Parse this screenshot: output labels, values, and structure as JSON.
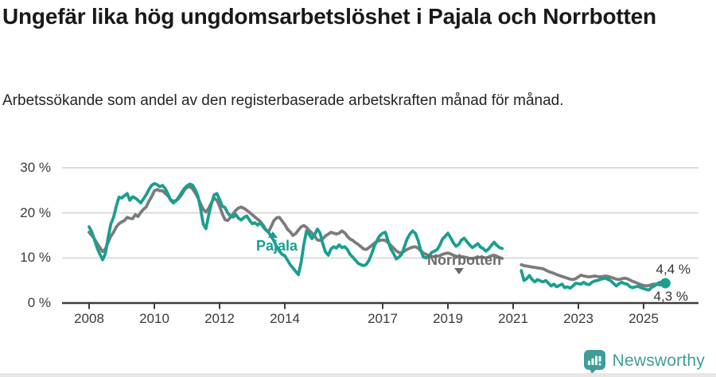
{
  "header": {
    "title": "Ungefär lika hög ungdomsarbetslöshet i Pajala och Norrbotten",
    "subtitle": "Arbetssökande som andel av den registerbaserade arbetskraften månad för månad."
  },
  "footer": {
    "brand": "Newsworthy",
    "logo_icon": "bar-chart-speech-bubble-icon"
  },
  "chart_data": {
    "type": "line",
    "x_unit": "year (monthly data)",
    "ylim": [
      0,
      32
    ],
    "grid": "horizontal",
    "yticks": [
      {
        "value": 30,
        "label": "30 %"
      },
      {
        "value": 20,
        "label": "20 %"
      },
      {
        "value": 10,
        "label": "10 %"
      },
      {
        "value": 0,
        "label": "0 %"
      }
    ],
    "xticks": [
      {
        "year": 2008,
        "label": "2008"
      },
      {
        "year": 2010,
        "label": "2010"
      },
      {
        "year": 2012,
        "label": "2012"
      },
      {
        "year": 2014,
        "label": "2014"
      },
      {
        "year": 2017,
        "label": "2017"
      },
      {
        "year": 2019,
        "label": "2019"
      },
      {
        "year": 2021,
        "label": "2021"
      },
      {
        "year": 2023,
        "label": "2023"
      },
      {
        "year": 2025,
        "label": "2025"
      }
    ],
    "colors": {
      "pajala": "#1a9e90",
      "norrbotten": "#7b7b7b",
      "gridline": "#dcdcdc",
      "axis": "#3c3c3c"
    },
    "series": [
      {
        "name": "Pajala",
        "color": "#1a9e90",
        "end_label": "4,4 %",
        "end_dot": true,
        "segments": [
          {
            "start": 2008.0,
            "step": 0.083333,
            "values": [
              16.9,
              15.8,
              14.0,
              12.2,
              10.8,
              9.6,
              11.0,
              14.5,
              17.5,
              19.0,
              21.5,
              23.5,
              23.3,
              23.8,
              24.3,
              22.8,
              23.6,
              23.3,
              22.8,
              22.2,
              23.1,
              24.0,
              25.2,
              26.1,
              26.5,
              26.3,
              25.8,
              26.1,
              25.4,
              24.2,
              22.8,
              22.2,
              22.7,
              23.5,
              24.5,
              25.4,
              26.0,
              26.4,
              26.2,
              25.2,
              23.8,
              21.0,
              17.5,
              16.5,
              19.5,
              22.0,
              24.0,
              24.3,
              23.0,
              21.5,
              21.2,
              20.0,
              19.3,
              19.1,
              19.6,
              18.8,
              18.4,
              19.0,
              19.3,
              18.4,
              17.6,
              17.8,
              17.3,
              17.8,
              16.9,
              16.2,
              15.7,
              14.8,
              13.8,
              12.5,
              11.5,
              10.8,
              10.5,
              9.5,
              8.5,
              7.8,
              7.0,
              6.3,
              9.0,
              13.0,
              16.0,
              15.2,
              14.3,
              15.2,
              16.4,
              15.5,
              13.1,
              11.3,
              10.6,
              12.0,
              12.5,
              12.2,
              12.9,
              12.3,
              12.5,
              11.9,
              10.8,
              10.2,
              9.5,
              8.8,
              8.5,
              8.3,
              8.6,
              9.5,
              11.0,
              12.7,
              14.0,
              15.0,
              15.5,
              15.7,
              13.8,
              12.0,
              11.0,
              9.8,
              10.2,
              10.8,
              12.5,
              14.2,
              15.3,
              16.0,
              15.5,
              14.0,
              11.8,
              10.2,
              10.0,
              10.3,
              11.2,
              11.5,
              11.8,
              12.8,
              14.2,
              14.8,
              15.5,
              14.5,
              13.4,
              12.6,
              13.0,
              14.0,
              14.4,
              13.6,
              12.9,
              12.3,
              12.7,
              13.2,
              12.4,
              12.1,
              11.5,
              12.0,
              12.8,
              13.5,
              12.8,
              12.3,
              12.1
            ]
          },
          {
            "start": 2021.25,
            "step": 0.083333,
            "values": [
              7.2,
              5.0,
              5.4,
              6.1,
              5.2,
              4.7,
              5.2,
              4.9,
              4.7,
              5.0,
              4.4,
              3.8,
              4.2,
              3.6,
              3.9,
              4.2,
              3.4,
              3.6,
              3.3,
              3.8,
              4.4,
              4.3,
              4.2,
              4.6,
              4.2,
              4.1,
              4.6,
              4.9,
              5.0,
              5.2,
              5.4,
              5.5,
              5.2,
              4.9,
              4.3,
              3.8,
              4.3,
              4.6,
              4.3,
              4.2,
              3.6,
              3.4,
              3.6,
              3.7,
              3.4,
              3.2,
              3.0,
              2.9,
              3.5,
              3.8,
              4.3,
              4.6,
              4.3,
              4.4
            ]
          }
        ]
      },
      {
        "name": "Norrbotten",
        "color": "#7b7b7b",
        "end_label": "4,3 %",
        "end_dot": false,
        "segments": [
          {
            "start": 2008.0,
            "step": 0.083333,
            "values": [
              15.7,
              15.0,
              14.2,
              13.2,
              12.3,
              11.4,
              12.0,
              13.5,
              14.8,
              15.7,
              16.9,
              17.6,
              18.0,
              18.3,
              19.0,
              18.8,
              18.7,
              19.6,
              19.2,
              20.1,
              20.8,
              21.3,
              22.6,
              23.6,
              24.9,
              25.2,
              24.9,
              24.9,
              24.3,
              23.8,
              22.9,
              22.6,
              22.7,
              23.2,
              24.0,
              25.0,
              25.7,
              25.8,
              25.4,
              24.5,
              23.4,
              22.0,
              20.8,
              20.2,
              21.0,
              22.2,
              23.3,
              22.8,
              21.5,
              19.8,
              18.5,
              18.3,
              19.0,
              19.8,
              20.6,
              21.1,
              21.3,
              21.0,
              20.6,
              20.1,
              19.6,
              19.1,
              18.6,
              18.1,
              17.3,
              16.3,
              15.8,
              17.0,
              18.3,
              18.9,
              19.0,
              18.2,
              17.4,
              16.4,
              15.8,
              15.0,
              15.4,
              16.2,
              16.9,
              17.2,
              16.8,
              16.1,
              15.5,
              14.8,
              14.0,
              13.9,
              14.3,
              14.9,
              15.3,
              15.7,
              15.5,
              15.3,
              15.5,
              16.0,
              15.6,
              14.8,
              14.2,
              13.9,
              13.4,
              13.0,
              12.5,
              12.0,
              11.9,
              12.3,
              12.8,
              13.3,
              13.7,
              13.9,
              14.0,
              13.9,
              13.4,
              12.8,
              12.2,
              11.6,
              11.2,
              11.1,
              11.5,
              11.9,
              12.2,
              12.4,
              12.5,
              12.2,
              11.6,
              11.1,
              10.8,
              10.5,
              10.3,
              10.3,
              10.4,
              10.5,
              10.8,
              11.0,
              11.1,
              10.9,
              10.6,
              10.4,
              10.3,
              10.3,
              10.2,
              10.1,
              9.9,
              9.9,
              10.0,
              10.1,
              10.2,
              10.1,
              10.0,
              10.2,
              10.5,
              10.6,
              10.4,
              10.1,
              9.9
            ]
          },
          {
            "start": 2021.25,
            "step": 0.083333,
            "values": [
              8.5,
              8.3,
              8.2,
              8.1,
              8.0,
              7.9,
              7.8,
              7.7,
              7.6,
              7.3,
              7.0,
              6.8,
              6.6,
              6.3,
              6.1,
              5.9,
              5.7,
              5.5,
              5.3,
              5.2,
              5.4,
              5.8,
              6.2,
              6.0,
              5.9,
              5.8,
              5.9,
              6.0,
              5.9,
              5.8,
              5.9,
              6.0,
              5.9,
              5.7,
              5.5,
              5.3,
              5.2,
              5.4,
              5.5,
              5.4,
              5.1,
              4.8,
              4.6,
              4.3,
              4.1,
              3.9,
              3.8,
              3.9,
              4.1,
              4.2,
              4.1,
              4.0,
              4.1,
              4.3
            ]
          }
        ]
      }
    ]
  }
}
